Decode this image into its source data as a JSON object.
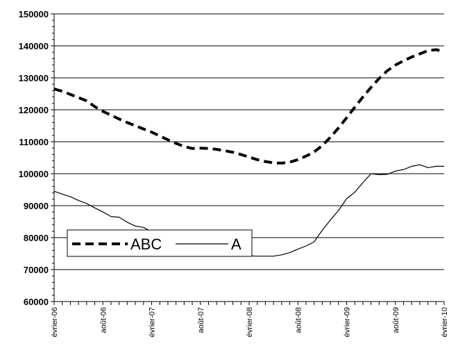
{
  "chart_data": {
    "type": "line",
    "title": "",
    "xlabel": "",
    "ylabel": "",
    "ylim": [
      60000,
      150000
    ],
    "yticks": [
      60000,
      70000,
      80000,
      90000,
      100000,
      110000,
      120000,
      130000,
      140000,
      150000
    ],
    "ytick_labels": [
      "60000",
      "70000",
      "80000",
      "90000",
      "100000",
      "110000",
      "120000",
      "130000",
      "140000",
      "150000"
    ],
    "x_range_months": [
      "2006-02",
      "2010-02"
    ],
    "x_tick_labels": [
      {
        "month": "2006-02",
        "label": "évrier-06"
      },
      {
        "month": "2006-08",
        "label": "août-06"
      },
      {
        "month": "2007-02",
        "label": "évrier-07"
      },
      {
        "month": "2007-08",
        "label": "août-07"
      },
      {
        "month": "2008-02",
        "label": "évrier-08"
      },
      {
        "month": "2008-08",
        "label": "août-08"
      },
      {
        "month": "2009-02",
        "label": "évrier-09"
      },
      {
        "month": "2009-08",
        "label": "août-09"
      },
      {
        "month": "2010-02",
        "label": "évrier-10"
      }
    ],
    "grid": true,
    "legend_position": "bottom-left",
    "series": [
      {
        "name": "ABC",
        "style": "dashed",
        "color": "#000000",
        "points": [
          [
            "2006-02",
            126500
          ],
          [
            "2006-03",
            125800
          ],
          [
            "2006-04",
            124800
          ],
          [
            "2006-05",
            123800
          ],
          [
            "2006-06",
            122800
          ],
          [
            "2006-07",
            121000
          ],
          [
            "2006-08",
            119500
          ],
          [
            "2006-09",
            118300
          ],
          [
            "2006-10",
            117100
          ],
          [
            "2006-11",
            116000
          ],
          [
            "2006-12",
            115000
          ],
          [
            "2007-01",
            114000
          ],
          [
            "2007-02",
            113000
          ],
          [
            "2007-03",
            111800
          ],
          [
            "2007-04",
            110600
          ],
          [
            "2007-05",
            109500
          ],
          [
            "2007-06",
            108500
          ],
          [
            "2007-07",
            107900
          ],
          [
            "2007-08",
            108000
          ],
          [
            "2007-09",
            107900
          ],
          [
            "2007-10",
            107600
          ],
          [
            "2007-11",
            107200
          ],
          [
            "2007-12",
            106700
          ],
          [
            "2008-01",
            106000
          ],
          [
            "2008-02",
            105200
          ],
          [
            "2008-03",
            104400
          ],
          [
            "2008-04",
            103800
          ],
          [
            "2008-05",
            103400
          ],
          [
            "2008-06",
            103300
          ],
          [
            "2008-07",
            103600
          ],
          [
            "2008-08",
            104400
          ],
          [
            "2008-09",
            105500
          ],
          [
            "2008-10",
            106800
          ],
          [
            "2008-11",
            108800
          ],
          [
            "2008-12",
            111400
          ],
          [
            "2009-01",
            114300
          ],
          [
            "2009-02",
            117500
          ],
          [
            "2009-03",
            120800
          ],
          [
            "2009-04",
            124000
          ],
          [
            "2009-05",
            127000
          ],
          [
            "2009-06",
            129800
          ],
          [
            "2009-07",
            132200
          ],
          [
            "2009-08",
            134000
          ],
          [
            "2009-09",
            135300
          ],
          [
            "2009-10",
            136500
          ],
          [
            "2009-11",
            137500
          ],
          [
            "2009-12",
            138500
          ],
          [
            "2010-01",
            138800
          ],
          [
            "2010-02",
            138200
          ]
        ]
      },
      {
        "name": "A",
        "style": "solid",
        "color": "#000000",
        "points": [
          [
            "2006-02",
            94500
          ],
          [
            "2006-03",
            93600
          ],
          [
            "2006-04",
            92800
          ],
          [
            "2006-05",
            91600
          ],
          [
            "2006-06",
            90700
          ],
          [
            "2006-07",
            89300
          ],
          [
            "2006-08",
            88000
          ],
          [
            "2006-09",
            86600
          ],
          [
            "2006-10",
            86400
          ],
          [
            "2006-11",
            84800
          ],
          [
            "2006-12",
            83600
          ],
          [
            "2007-01",
            83200
          ],
          [
            "2007-02",
            81900
          ],
          [
            "2007-03",
            81000
          ],
          [
            "2007-04",
            80200
          ],
          [
            "2007-05",
            79500
          ],
          [
            "2007-06",
            78800
          ],
          [
            "2007-07",
            78200
          ],
          [
            "2007-08",
            77600
          ],
          [
            "2007-09",
            77000
          ],
          [
            "2007-10",
            76400
          ],
          [
            "2007-11",
            75800
          ],
          [
            "2007-12",
            75200
          ],
          [
            "2008-01",
            74600
          ],
          [
            "2008-02",
            74300
          ],
          [
            "2008-03",
            74200
          ],
          [
            "2008-04",
            74200
          ],
          [
            "2008-05",
            74200
          ],
          [
            "2008-06",
            74600
          ],
          [
            "2008-07",
            75300
          ],
          [
            "2008-08",
            76400
          ],
          [
            "2008-09",
            77400
          ],
          [
            "2008-10",
            78700
          ],
          [
            "2008-11",
            82300
          ],
          [
            "2008-12",
            85500
          ],
          [
            "2009-01",
            88500
          ],
          [
            "2009-02",
            92200
          ],
          [
            "2009-03",
            94200
          ],
          [
            "2009-04",
            97200
          ],
          [
            "2009-05",
            100000
          ],
          [
            "2009-06",
            99700
          ],
          [
            "2009-07",
            99800
          ],
          [
            "2009-08",
            100800
          ],
          [
            "2009-09",
            101300
          ],
          [
            "2009-10",
            102300
          ],
          [
            "2009-11",
            102800
          ],
          [
            "2009-12",
            101900
          ],
          [
            "2010-01",
            102300
          ],
          [
            "2010-02",
            102300
          ]
        ]
      }
    ]
  }
}
